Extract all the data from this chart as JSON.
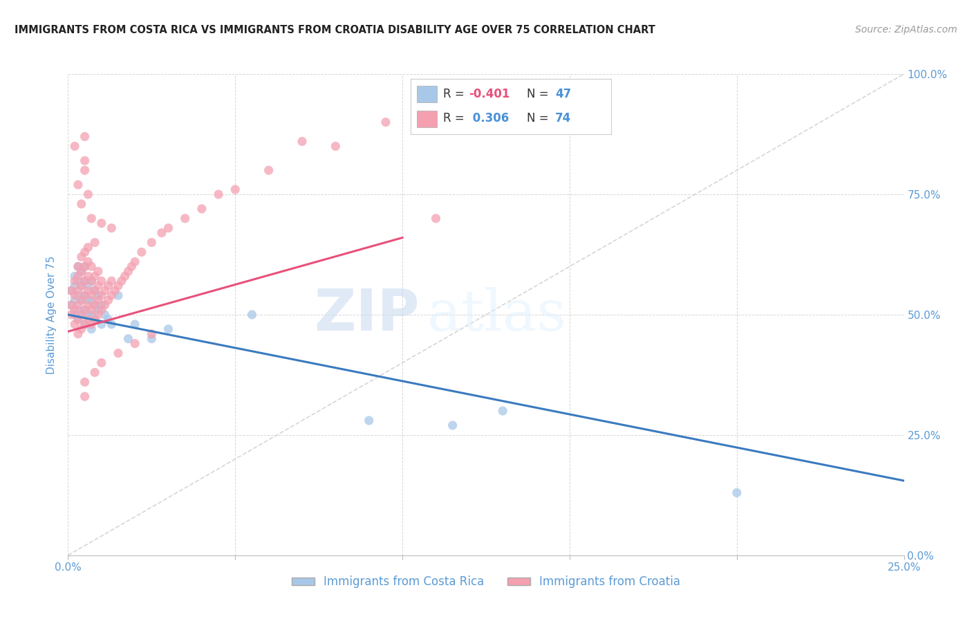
{
  "title": "IMMIGRANTS FROM COSTA RICA VS IMMIGRANTS FROM CROATIA DISABILITY AGE OVER 75 CORRELATION CHART",
  "source": "Source: ZipAtlas.com",
  "ylabel_label": "Disability Age Over 75",
  "legend1_label": "Immigrants from Costa Rica",
  "legend2_label": "Immigrants from Croatia",
  "watermark_zip": "ZIP",
  "watermark_atlas": "atlas",
  "blue_color": "#a8c8e8",
  "pink_color": "#f4a0b0",
  "blue_line_color": "#3a7abf",
  "pink_line_color": "#e8507a",
  "ref_line_color": "#cccccc",
  "xlim": [
    0.0,
    0.25
  ],
  "ylim": [
    0.0,
    1.0
  ],
  "bg_color": "#ffffff",
  "grid_color": "#cccccc",
  "title_color": "#222222",
  "tick_label_color": "#5b9bd5",
  "ylabel_color": "#5b9bd5",
  "blue_trend_x0": 0.0,
  "blue_trend_y0": 0.5,
  "blue_trend_x1": 0.25,
  "blue_trend_y1": 0.155,
  "pink_trend_x0": 0.0,
  "pink_trend_y0": 0.465,
  "pink_trend_x1": 0.1,
  "pink_trend_y1": 0.66,
  "ref_line_x0": 0.0,
  "ref_line_y0": 0.0,
  "ref_line_x1": 0.25,
  "ref_line_y1": 1.0,
  "costa_rica_x": [
    0.001,
    0.001,
    0.002,
    0.002,
    0.002,
    0.002,
    0.003,
    0.003,
    0.003,
    0.003,
    0.003,
    0.004,
    0.004,
    0.004,
    0.004,
    0.005,
    0.005,
    0.005,
    0.005,
    0.005,
    0.006,
    0.006,
    0.006,
    0.007,
    0.007,
    0.007,
    0.007,
    0.008,
    0.008,
    0.008,
    0.009,
    0.009,
    0.01,
    0.01,
    0.011,
    0.012,
    0.013,
    0.015,
    0.018,
    0.02,
    0.025,
    0.03,
    0.055,
    0.09,
    0.115,
    0.2,
    0.13
  ],
  "costa_rica_y": [
    0.52,
    0.55,
    0.5,
    0.53,
    0.56,
    0.58,
    0.49,
    0.51,
    0.54,
    0.57,
    0.6,
    0.5,
    0.53,
    0.56,
    0.59,
    0.48,
    0.51,
    0.54,
    0.57,
    0.6,
    0.5,
    0.53,
    0.56,
    0.47,
    0.5,
    0.53,
    0.57,
    0.49,
    0.52,
    0.55,
    0.51,
    0.54,
    0.48,
    0.52,
    0.5,
    0.49,
    0.48,
    0.54,
    0.45,
    0.48,
    0.45,
    0.47,
    0.5,
    0.28,
    0.27,
    0.13,
    0.3
  ],
  "croatia_x": [
    0.001,
    0.001,
    0.001,
    0.002,
    0.002,
    0.002,
    0.002,
    0.003,
    0.003,
    0.003,
    0.003,
    0.003,
    0.003,
    0.004,
    0.004,
    0.004,
    0.004,
    0.004,
    0.004,
    0.005,
    0.005,
    0.005,
    0.005,
    0.005,
    0.005,
    0.005,
    0.006,
    0.006,
    0.006,
    0.006,
    0.006,
    0.006,
    0.007,
    0.007,
    0.007,
    0.007,
    0.007,
    0.008,
    0.008,
    0.008,
    0.008,
    0.009,
    0.009,
    0.009,
    0.009,
    0.01,
    0.01,
    0.01,
    0.011,
    0.011,
    0.012,
    0.012,
    0.013,
    0.013,
    0.014,
    0.015,
    0.016,
    0.017,
    0.018,
    0.019,
    0.02,
    0.022,
    0.025,
    0.028,
    0.03,
    0.035,
    0.04,
    0.045,
    0.05,
    0.06,
    0.07,
    0.08,
    0.095,
    0.11
  ],
  "croatia_y": [
    0.5,
    0.52,
    0.55,
    0.48,
    0.51,
    0.54,
    0.57,
    0.46,
    0.49,
    0.52,
    0.55,
    0.58,
    0.6,
    0.47,
    0.5,
    0.53,
    0.56,
    0.59,
    0.62,
    0.48,
    0.51,
    0.54,
    0.57,
    0.6,
    0.63,
    0.8,
    0.49,
    0.52,
    0.55,
    0.58,
    0.61,
    0.64,
    0.48,
    0.51,
    0.54,
    0.57,
    0.6,
    0.49,
    0.52,
    0.55,
    0.58,
    0.5,
    0.53,
    0.56,
    0.59,
    0.51,
    0.54,
    0.57,
    0.52,
    0.55,
    0.53,
    0.56,
    0.54,
    0.57,
    0.55,
    0.56,
    0.57,
    0.58,
    0.59,
    0.6,
    0.61,
    0.63,
    0.65,
    0.67,
    0.68,
    0.7,
    0.72,
    0.75,
    0.76,
    0.8,
    0.86,
    0.85,
    0.9,
    0.7
  ],
  "extra_pink_high": [
    [
      0.005,
      0.87
    ],
    [
      0.005,
      0.82
    ],
    [
      0.007,
      0.7
    ],
    [
      0.01,
      0.69
    ],
    [
      0.013,
      0.68
    ],
    [
      0.008,
      0.65
    ],
    [
      0.003,
      0.77
    ],
    [
      0.004,
      0.73
    ],
    [
      0.006,
      0.75
    ],
    [
      0.002,
      0.85
    ]
  ],
  "extra_pink_low": [
    [
      0.005,
      0.33
    ],
    [
      0.005,
      0.36
    ],
    [
      0.008,
      0.38
    ],
    [
      0.01,
      0.4
    ],
    [
      0.015,
      0.42
    ],
    [
      0.02,
      0.44
    ],
    [
      0.025,
      0.46
    ]
  ]
}
